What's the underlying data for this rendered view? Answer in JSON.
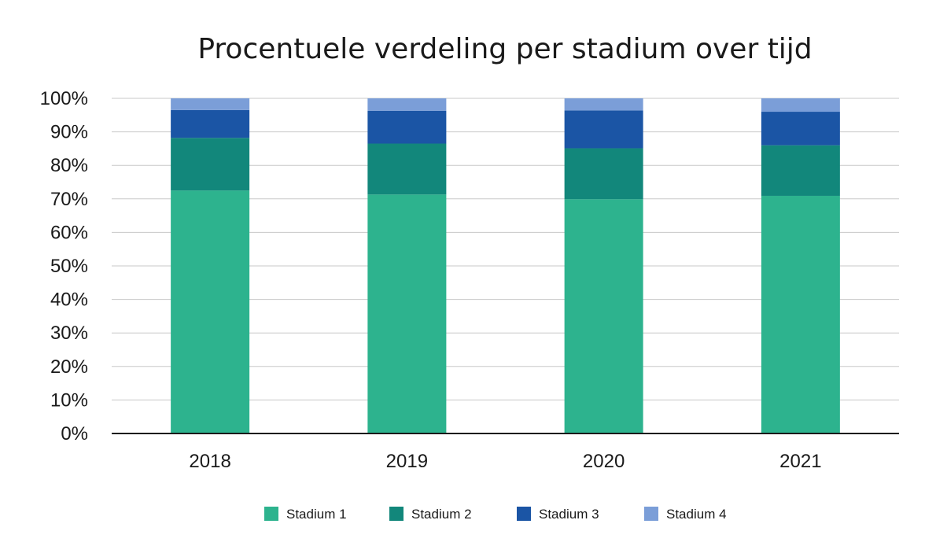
{
  "chart_data": {
    "type": "bar",
    "stacked": true,
    "title": "Procentuele verdeling per stadium over tijd",
    "xlabel": "",
    "ylabel": "",
    "categories": [
      "2018",
      "2019",
      "2020",
      "2021"
    ],
    "ylim": [
      0,
      100
    ],
    "yticks": [
      0,
      10,
      20,
      30,
      40,
      50,
      60,
      70,
      80,
      90,
      100
    ],
    "ytick_labels": [
      "0%",
      "10%",
      "20%",
      "30%",
      "40%",
      "50%",
      "60%",
      "70%",
      "80%",
      "90%",
      "100%"
    ],
    "grid": true,
    "legend_position": "bottom",
    "series": [
      {
        "name": "Stadium 1",
        "color": "#2db38e",
        "values": [
          72.5,
          71.3,
          69.9,
          70.9
        ]
      },
      {
        "name": "Stadium 2",
        "color": "#12877b",
        "values": [
          15.7,
          15.2,
          15.2,
          15.1
        ]
      },
      {
        "name": "Stadium 3",
        "color": "#1b55a5",
        "values": [
          8.3,
          9.8,
          11.3,
          10.0
        ]
      },
      {
        "name": "Stadium 4",
        "color": "#7b9ed8",
        "values": [
          3.5,
          3.7,
          3.6,
          4.0
        ]
      }
    ]
  }
}
